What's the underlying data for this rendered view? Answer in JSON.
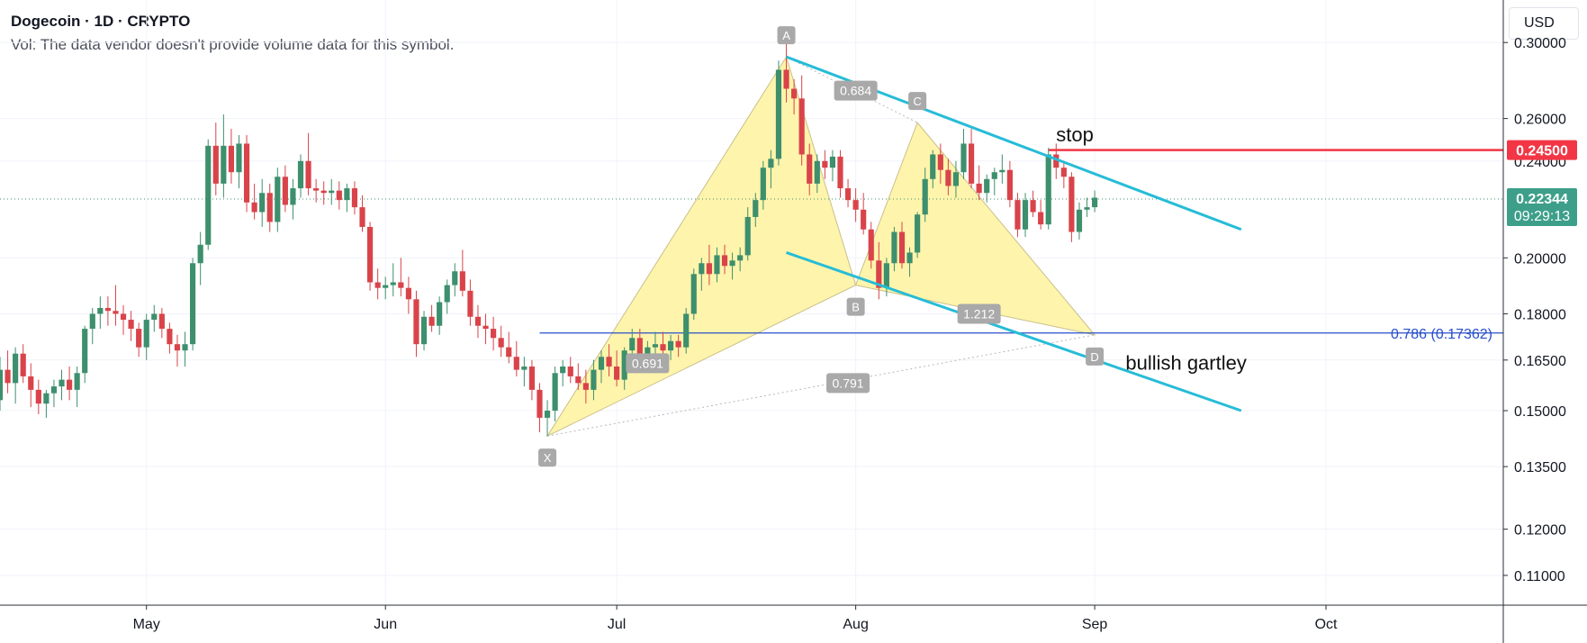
{
  "header": {
    "title": "Dogecoin · 1D · CRYPTO",
    "volume_note": "Vol: The data vendor doesn't provide volume data for this symbol.",
    "currency": "USD"
  },
  "price_badges": {
    "stop": {
      "value": "0.24500",
      "price": 0.245,
      "color": "#f23645"
    },
    "last": {
      "value": "0.22344",
      "countdown": "09:29:13",
      "price": 0.22344,
      "color": "#3d9f8a"
    }
  },
  "colors": {
    "up": "#3d8f6d",
    "down": "#d9434a",
    "channel": "#26bcd7",
    "pattern_fill": "#fff29e",
    "fib_line": "#2a4fc9"
  },
  "chart_data": {
    "type": "candlestick",
    "symbol": "Dogecoin",
    "interval": "1D",
    "y_scale": "log",
    "ylim": [
      0.104,
      0.325
    ],
    "y_ticks": [
      {
        "value": 0.3,
        "label": "0.30000"
      },
      {
        "value": 0.26,
        "label": "0.26000"
      },
      {
        "value": 0.24,
        "label": "0.24000"
      },
      {
        "value": 0.2,
        "label": "0.20000"
      },
      {
        "value": 0.18,
        "label": "0.18000"
      },
      {
        "value": 0.165,
        "label": "0.16500"
      },
      {
        "value": 0.15,
        "label": "0.15000"
      },
      {
        "value": 0.135,
        "label": "0.13500"
      },
      {
        "value": 0.12,
        "label": "0.12000"
      },
      {
        "value": 0.11,
        "label": "0.11000"
      }
    ],
    "x_start_date": "2021-04-12",
    "x_end_date": "2021-10-24",
    "x_ticks": [
      {
        "date": "2021-05-01",
        "label": "May"
      },
      {
        "date": "2021-06-01",
        "label": "Jun"
      },
      {
        "date": "2021-07-01",
        "label": "Jul"
      },
      {
        "date": "2021-08-01",
        "label": "Aug"
      },
      {
        "date": "2021-09-01",
        "label": "Sep"
      },
      {
        "date": "2021-10-01",
        "label": "Oct"
      }
    ],
    "candles_start": "2021-04-12",
    "ohlc": [
      [
        0.153,
        0.166,
        0.15,
        0.162
      ],
      [
        0.162,
        0.168,
        0.155,
        0.158
      ],
      [
        0.158,
        0.169,
        0.152,
        0.167
      ],
      [
        0.167,
        0.17,
        0.158,
        0.16
      ],
      [
        0.16,
        0.164,
        0.151,
        0.156
      ],
      [
        0.156,
        0.159,
        0.149,
        0.152
      ],
      [
        0.152,
        0.156,
        0.148,
        0.155
      ],
      [
        0.155,
        0.159,
        0.151,
        0.157
      ],
      [
        0.157,
        0.162,
        0.153,
        0.159
      ],
      [
        0.159,
        0.163,
        0.153,
        0.156
      ],
      [
        0.156,
        0.163,
        0.151,
        0.161
      ],
      [
        0.161,
        0.176,
        0.158,
        0.175
      ],
      [
        0.175,
        0.182,
        0.17,
        0.18
      ],
      [
        0.18,
        0.186,
        0.175,
        0.182
      ],
      [
        0.182,
        0.186,
        0.176,
        0.181
      ],
      [
        0.181,
        0.19,
        0.176,
        0.18
      ],
      [
        0.18,
        0.183,
        0.173,
        0.178
      ],
      [
        0.178,
        0.181,
        0.171,
        0.175
      ],
      [
        0.175,
        0.177,
        0.166,
        0.169
      ],
      [
        0.169,
        0.18,
        0.165,
        0.178
      ],
      [
        0.178,
        0.183,
        0.174,
        0.18
      ],
      [
        0.18,
        0.182,
        0.172,
        0.175
      ],
      [
        0.175,
        0.177,
        0.167,
        0.17
      ],
      [
        0.17,
        0.173,
        0.163,
        0.168
      ],
      [
        0.168,
        0.174,
        0.163,
        0.17
      ],
      [
        0.17,
        0.2,
        0.168,
        0.198
      ],
      [
        0.198,
        0.21,
        0.19,
        0.205
      ],
      [
        0.205,
        0.25,
        0.203,
        0.247
      ],
      [
        0.247,
        0.258,
        0.225,
        0.23
      ],
      [
        0.23,
        0.262,
        0.224,
        0.247
      ],
      [
        0.247,
        0.255,
        0.23,
        0.235
      ],
      [
        0.235,
        0.252,
        0.228,
        0.248
      ],
      [
        0.248,
        0.252,
        0.218,
        0.222
      ],
      [
        0.222,
        0.23,
        0.215,
        0.218
      ],
      [
        0.218,
        0.232,
        0.212,
        0.226
      ],
      [
        0.226,
        0.23,
        0.21,
        0.214
      ],
      [
        0.214,
        0.237,
        0.21,
        0.233
      ],
      [
        0.233,
        0.238,
        0.218,
        0.221
      ],
      [
        0.221,
        0.232,
        0.215,
        0.228
      ],
      [
        0.228,
        0.243,
        0.224,
        0.24
      ],
      [
        0.24,
        0.253,
        0.225,
        0.228
      ],
      [
        0.228,
        0.232,
        0.222,
        0.227
      ],
      [
        0.227,
        0.231,
        0.221,
        0.226
      ],
      [
        0.226,
        0.232,
        0.221,
        0.227
      ],
      [
        0.227,
        0.231,
        0.219,
        0.223
      ],
      [
        0.223,
        0.23,
        0.218,
        0.228
      ],
      [
        0.228,
        0.231,
        0.217,
        0.22
      ],
      [
        0.22,
        0.225,
        0.21,
        0.212
      ],
      [
        0.212,
        0.214,
        0.188,
        0.191
      ],
      [
        0.191,
        0.196,
        0.185,
        0.189
      ],
      [
        0.189,
        0.193,
        0.185,
        0.19
      ],
      [
        0.19,
        0.198,
        0.186,
        0.191
      ],
      [
        0.191,
        0.2,
        0.186,
        0.189
      ],
      [
        0.189,
        0.193,
        0.18,
        0.185
      ],
      [
        0.185,
        0.188,
        0.166,
        0.17
      ],
      [
        0.17,
        0.181,
        0.168,
        0.179
      ],
      [
        0.179,
        0.183,
        0.174,
        0.176
      ],
      [
        0.176,
        0.186,
        0.173,
        0.184
      ],
      [
        0.184,
        0.192,
        0.18,
        0.19
      ],
      [
        0.19,
        0.198,
        0.186,
        0.195
      ],
      [
        0.195,
        0.203,
        0.186,
        0.188
      ],
      [
        0.188,
        0.192,
        0.176,
        0.179
      ],
      [
        0.179,
        0.183,
        0.172,
        0.176
      ],
      [
        0.176,
        0.18,
        0.17,
        0.175
      ],
      [
        0.175,
        0.179,
        0.168,
        0.172
      ],
      [
        0.172,
        0.176,
        0.166,
        0.169
      ],
      [
        0.169,
        0.174,
        0.164,
        0.166
      ],
      [
        0.166,
        0.171,
        0.16,
        0.162
      ],
      [
        0.162,
        0.166,
        0.157,
        0.163
      ],
      [
        0.163,
        0.165,
        0.153,
        0.156
      ],
      [
        0.156,
        0.158,
        0.144,
        0.148
      ],
      [
        0.148,
        0.153,
        0.143,
        0.15
      ],
      [
        0.15,
        0.163,
        0.147,
        0.161
      ],
      [
        0.161,
        0.165,
        0.157,
        0.163
      ],
      [
        0.163,
        0.166,
        0.158,
        0.16
      ],
      [
        0.16,
        0.164,
        0.156,
        0.158
      ],
      [
        0.158,
        0.162,
        0.152,
        0.156
      ],
      [
        0.156,
        0.165,
        0.153,
        0.162
      ],
      [
        0.162,
        0.168,
        0.158,
        0.166
      ],
      [
        0.166,
        0.17,
        0.16,
        0.163
      ],
      [
        0.163,
        0.168,
        0.157,
        0.159
      ],
      [
        0.159,
        0.169,
        0.156,
        0.168
      ],
      [
        0.168,
        0.175,
        0.164,
        0.172
      ],
      [
        0.172,
        0.175,
        0.164,
        0.166
      ],
      [
        0.166,
        0.171,
        0.163,
        0.169
      ],
      [
        0.169,
        0.174,
        0.165,
        0.17
      ],
      [
        0.17,
        0.174,
        0.165,
        0.168
      ],
      [
        0.168,
        0.173,
        0.165,
        0.171
      ],
      [
        0.171,
        0.173,
        0.166,
        0.169
      ],
      [
        0.169,
        0.182,
        0.167,
        0.18
      ],
      [
        0.18,
        0.196,
        0.178,
        0.194
      ],
      [
        0.194,
        0.2,
        0.188,
        0.198
      ],
      [
        0.198,
        0.205,
        0.19,
        0.194
      ],
      [
        0.194,
        0.204,
        0.191,
        0.201
      ],
      [
        0.201,
        0.205,
        0.194,
        0.197
      ],
      [
        0.197,
        0.202,
        0.192,
        0.199
      ],
      [
        0.199,
        0.204,
        0.195,
        0.201
      ],
      [
        0.201,
        0.22,
        0.199,
        0.216
      ],
      [
        0.216,
        0.226,
        0.212,
        0.223
      ],
      [
        0.223,
        0.24,
        0.219,
        0.237
      ],
      [
        0.237,
        0.245,
        0.228,
        0.241
      ],
      [
        0.241,
        0.29,
        0.238,
        0.285
      ],
      [
        0.285,
        0.3,
        0.268,
        0.275
      ],
      [
        0.275,
        0.28,
        0.262,
        0.27
      ],
      [
        0.27,
        0.282,
        0.238,
        0.243
      ],
      [
        0.243,
        0.248,
        0.225,
        0.23
      ],
      [
        0.23,
        0.243,
        0.226,
        0.24
      ],
      [
        0.24,
        0.245,
        0.232,
        0.237
      ],
      [
        0.237,
        0.245,
        0.231,
        0.242
      ],
      [
        0.242,
        0.245,
        0.224,
        0.228
      ],
      [
        0.228,
        0.232,
        0.22,
        0.223
      ],
      [
        0.223,
        0.228,
        0.214,
        0.219
      ],
      [
        0.219,
        0.226,
        0.209,
        0.211
      ],
      [
        0.211,
        0.214,
        0.196,
        0.199
      ],
      [
        0.199,
        0.206,
        0.185,
        0.189
      ],
      [
        0.189,
        0.2,
        0.186,
        0.198
      ],
      [
        0.198,
        0.212,
        0.195,
        0.21
      ],
      [
        0.21,
        0.214,
        0.196,
        0.198
      ],
      [
        0.198,
        0.204,
        0.193,
        0.202
      ],
      [
        0.202,
        0.218,
        0.2,
        0.217
      ],
      [
        0.217,
        0.237,
        0.214,
        0.232
      ],
      [
        0.232,
        0.245,
        0.228,
        0.243
      ],
      [
        0.243,
        0.248,
        0.23,
        0.236
      ],
      [
        0.236,
        0.241,
        0.225,
        0.229
      ],
      [
        0.229,
        0.24,
        0.224,
        0.235
      ],
      [
        0.235,
        0.255,
        0.232,
        0.248
      ],
      [
        0.248,
        0.255,
        0.228,
        0.23
      ],
      [
        0.23,
        0.238,
        0.223,
        0.226
      ],
      [
        0.226,
        0.234,
        0.222,
        0.232
      ],
      [
        0.232,
        0.237,
        0.225,
        0.235
      ],
      [
        0.235,
        0.243,
        0.23,
        0.236
      ],
      [
        0.236,
        0.24,
        0.22,
        0.223
      ],
      [
        0.223,
        0.226,
        0.208,
        0.211
      ],
      [
        0.211,
        0.226,
        0.208,
        0.223
      ],
      [
        0.223,
        0.227,
        0.216,
        0.218
      ],
      [
        0.218,
        0.223,
        0.211,
        0.213
      ],
      [
        0.213,
        0.246,
        0.211,
        0.243
      ],
      [
        0.243,
        0.248,
        0.232,
        0.237
      ],
      [
        0.237,
        0.24,
        0.228,
        0.233
      ],
      [
        0.233,
        0.235,
        0.206,
        0.21
      ],
      [
        0.21,
        0.222,
        0.207,
        0.219
      ],
      [
        0.219,
        0.224,
        0.216,
        0.22
      ],
      [
        0.22,
        0.227,
        0.218,
        0.224
      ]
    ],
    "horizontal_lines": [
      {
        "name": "stop",
        "price": 0.245,
        "x_from": "2021-08-26",
        "label": "stop"
      },
      {
        "name": "fib-0786",
        "price": 0.17362,
        "x_from": "2021-06-21",
        "label": "0.786 (0.17362)"
      }
    ],
    "harmonic_pattern": {
      "name": "bullish gartley",
      "points": [
        {
          "label": "X",
          "date": "2021-06-22",
          "price": 0.143
        },
        {
          "label": "A",
          "date": "2021-07-23",
          "price": 0.292
        },
        {
          "label": "B",
          "date": "2021-08-01",
          "price": 0.19
        },
        {
          "label": "C",
          "date": "2021-08-09",
          "price": 0.258
        },
        {
          "label": "D",
          "date": "2021-09-01",
          "price": 0.173
        }
      ],
      "ratios": [
        {
          "text": "0.684",
          "date": "2021-08-01",
          "price": 0.274
        },
        {
          "text": "0.691",
          "date": "2021-07-05",
          "price": 0.164
        },
        {
          "text": "1.212",
          "date": "2021-08-17",
          "price": 0.18
        },
        {
          "text": "0.791",
          "date": "2021-07-31",
          "price": 0.158
        }
      ]
    },
    "trend_lines": [
      {
        "name": "channel-upper",
        "from": {
          "date": "2021-07-23",
          "price": 0.292
        },
        "to": {
          "date": "2021-09-20",
          "price": 0.211
        }
      },
      {
        "name": "channel-lower",
        "from": {
          "date": "2021-07-23",
          "price": 0.202
        },
        "to": {
          "date": "2021-09-20",
          "price": 0.15
        }
      }
    ],
    "annotations": [
      {
        "text": "stop",
        "date": "2021-08-27",
        "price": 0.249
      },
      {
        "text": "bullish gartley",
        "date": "2021-09-05",
        "price": 0.162
      }
    ]
  }
}
